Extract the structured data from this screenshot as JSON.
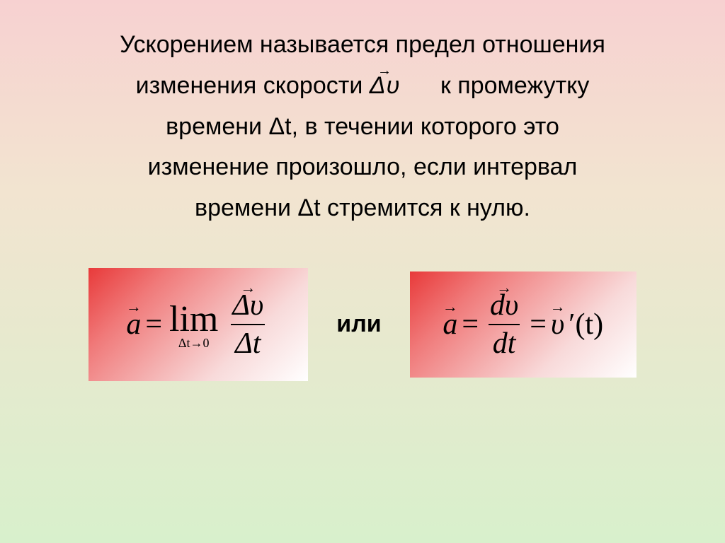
{
  "definition": {
    "line1_pre": "Ускорением называется предел отношения",
    "line2_pre": "изменения скорости",
    "line2_post": "к промежутку",
    "delta_v_sym": "Δυ",
    "line3": "времени Δt, в течении которого это",
    "line4": "изменение произошло, если интервал",
    "line5": "времени Δt стремится к нулю."
  },
  "formulas": {
    "left": {
      "a_sym": "a",
      "equals": "=",
      "lim_word": "lim",
      "lim_sub": "Δt→0",
      "frac_num": "Δυ",
      "frac_den": "Δt"
    },
    "or_word": "или",
    "right": {
      "a_sym": "a",
      "equals": "=",
      "frac_num": "dυ",
      "frac_den": "dt",
      "equals2": "=",
      "v_sym": "υ",
      "prime_t": "′(t)"
    }
  },
  "style": {
    "bg_gradient": [
      "#f7d1d1",
      "#f2e4d0",
      "#d8f0cc"
    ],
    "box_gradient": [
      "#e83a3a",
      "#f07a7a",
      "#f8dada",
      "#ffffff"
    ],
    "text_color": "#000000",
    "def_fontsize": 34,
    "formula_fontsize": 42,
    "lim_fontsize": 52,
    "limsub_fontsize": 18,
    "or_fontsize": 34
  }
}
